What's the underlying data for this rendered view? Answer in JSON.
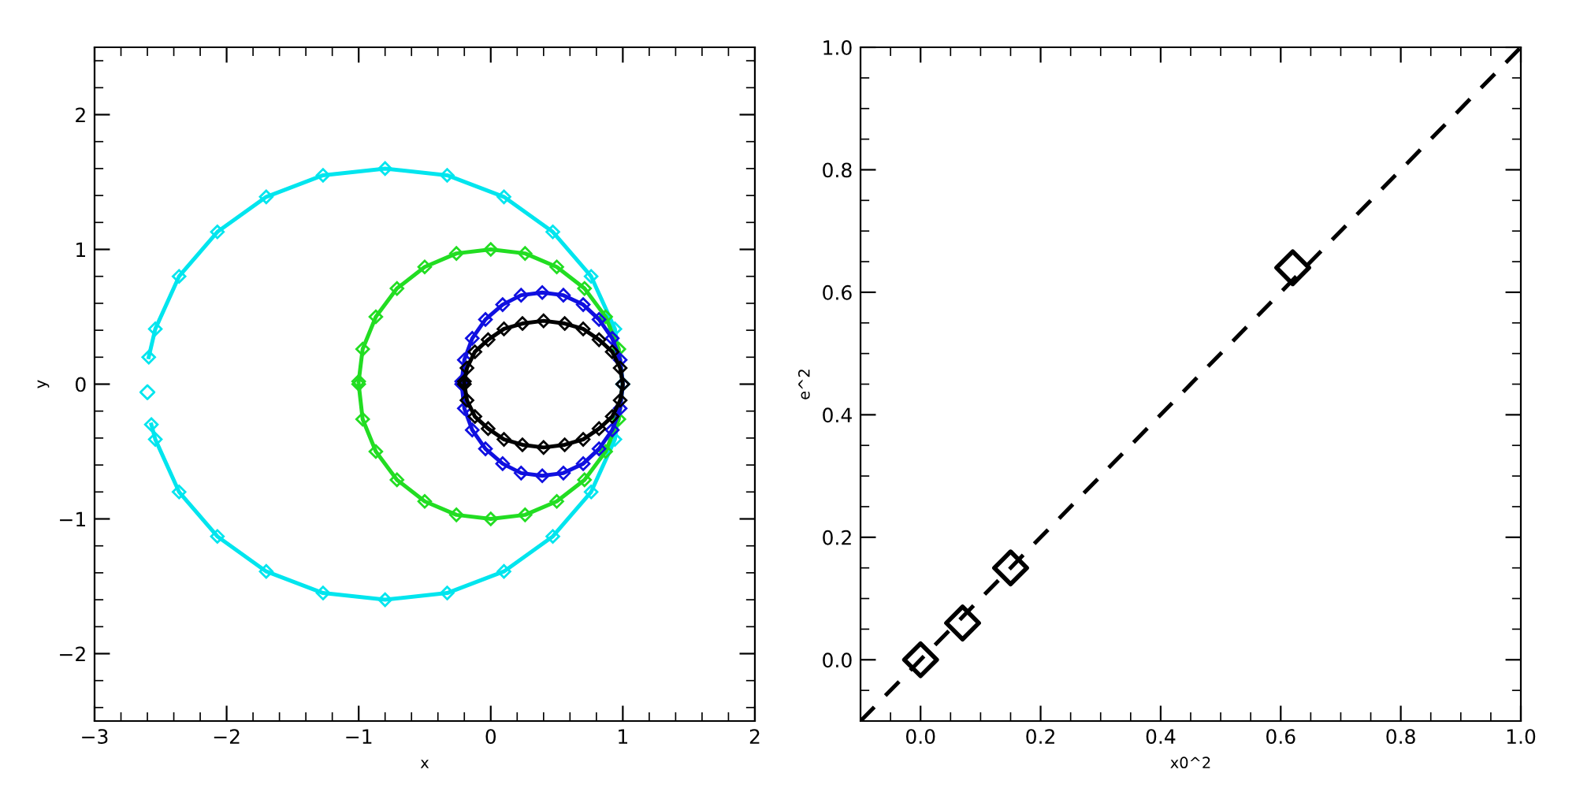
{
  "chart_data": [
    {
      "type": "line",
      "xlabel": "x",
      "ylabel": "y",
      "marker": "diamond",
      "line_style": "solid",
      "xlim": [
        -3,
        2
      ],
      "ylim": [
        -2.5,
        2.5
      ],
      "xticks": [
        {
          "value": -3,
          "label": "−3"
        },
        {
          "value": -2,
          "label": "−2"
        },
        {
          "value": -1,
          "label": "−1"
        },
        0,
        1,
        2
      ],
      "yticks": [
        {
          "value": -2,
          "label": "−2"
        },
        {
          "value": -1,
          "label": "−1"
        },
        0,
        1,
        2
      ],
      "series": [
        {
          "color": "#00e5ee",
          "x": [
            -2.59,
            -2.54,
            -2.36,
            -2.07,
            -1.7,
            -1.27,
            -0.8,
            -0.33,
            0.1,
            0.47,
            0.76,
            0.94,
            1.0,
            0.94,
            0.76,
            0.47,
            0.1,
            -0.33,
            -0.8,
            -1.27,
            -1.7,
            -2.07,
            -2.36,
            -2.54,
            -2.57
          ],
          "values": [
            0.2,
            0.41,
            0.8,
            1.13,
            1.39,
            1.55,
            1.6,
            1.55,
            1.39,
            1.13,
            0.8,
            0.41,
            0,
            -0.41,
            -0.8,
            -1.13,
            -1.39,
            -1.55,
            -1.6,
            -1.55,
            -1.39,
            -1.13,
            -0.8,
            -0.41,
            -0.3
          ]
        },
        {
          "type": "scatter",
          "color": "#00e5ee",
          "x": [
            -2.6
          ],
          "values": [
            -0.06
          ]
        },
        {
          "color": "#22dd22",
          "x": [
            -1,
            -0.97,
            -0.87,
            -0.71,
            -0.5,
            -0.26,
            0,
            0.26,
            0.5,
            0.71,
            0.87,
            0.97,
            1,
            0.97,
            0.87,
            0.71,
            0.5,
            0.26,
            0,
            -0.26,
            -0.5,
            -0.71,
            -0.87,
            -0.97,
            -1
          ],
          "values": [
            0,
            -0.26,
            -0.5,
            -0.71,
            -0.87,
            -0.97,
            -1,
            -0.97,
            -0.87,
            -0.71,
            -0.5,
            -0.26,
            0,
            0.26,
            0.5,
            0.71,
            0.87,
            0.97,
            1,
            0.97,
            0.87,
            0.71,
            0.5,
            0.26,
            0.02
          ]
        },
        {
          "color": "#1010e0",
          "x": [
            -0.22,
            -0.2,
            -0.14,
            -0.04,
            0.09,
            0.23,
            0.39,
            0.55,
            0.7,
            0.82,
            0.92,
            0.98,
            1,
            0.98,
            0.92,
            0.82,
            0.7,
            0.55,
            0.39,
            0.23,
            0.09,
            -0.04,
            -0.14,
            -0.2,
            -0.22
          ],
          "values": [
            0,
            -0.18,
            -0.34,
            -0.48,
            -0.59,
            -0.66,
            -0.68,
            -0.66,
            -0.59,
            -0.48,
            -0.34,
            -0.18,
            0,
            0.18,
            0.34,
            0.48,
            0.59,
            0.66,
            0.68,
            0.66,
            0.59,
            0.48,
            0.34,
            0.18,
            0.02
          ]
        },
        {
          "color": "#000000",
          "x": [
            -0.2,
            -0.18,
            -0.12,
            -0.02,
            0.1,
            0.24,
            0.4,
            0.56,
            0.7,
            0.82,
            0.92,
            0.98,
            1,
            0.98,
            0.92,
            0.82,
            0.7,
            0.56,
            0.4,
            0.24,
            0.1,
            -0.02,
            -0.12,
            -0.18,
            -0.2
          ],
          "values": [
            0,
            -0.12,
            -0.24,
            -0.33,
            -0.41,
            -0.45,
            -0.47,
            -0.45,
            -0.41,
            -0.33,
            -0.24,
            -0.12,
            0,
            0.12,
            0.24,
            0.33,
            0.41,
            0.45,
            0.47,
            0.45,
            0.41,
            0.33,
            0.24,
            0.12,
            0.02
          ]
        }
      ]
    },
    {
      "type": "scatter",
      "xlabel": "x0^2",
      "ylabel": "e^2",
      "marker": "diamond",
      "xlim": [
        -0.1,
        1.0
      ],
      "ylim": [
        -0.1,
        1.0
      ],
      "xticks": [
        {
          "value": 0,
          "label": "0.0"
        },
        0.2,
        0.4,
        0.6,
        0.8,
        {
          "value": 1,
          "label": "1.0"
        }
      ],
      "yticks": [
        {
          "value": 0,
          "label": "0.0"
        },
        0.2,
        0.4,
        0.6,
        0.8,
        {
          "value": 1,
          "label": "1.0"
        }
      ],
      "series": [
        {
          "color": "#000000",
          "x": [
            0,
            0.07,
            0.15,
            0.62
          ],
          "values": [
            0,
            0.06,
            0.15,
            0.64
          ]
        },
        {
          "type": "line",
          "color": "#000000",
          "line_style": "dashed",
          "marker": "none",
          "x": [
            -0.1,
            1.0
          ],
          "values": [
            -0.1,
            1.0
          ]
        }
      ]
    }
  ]
}
